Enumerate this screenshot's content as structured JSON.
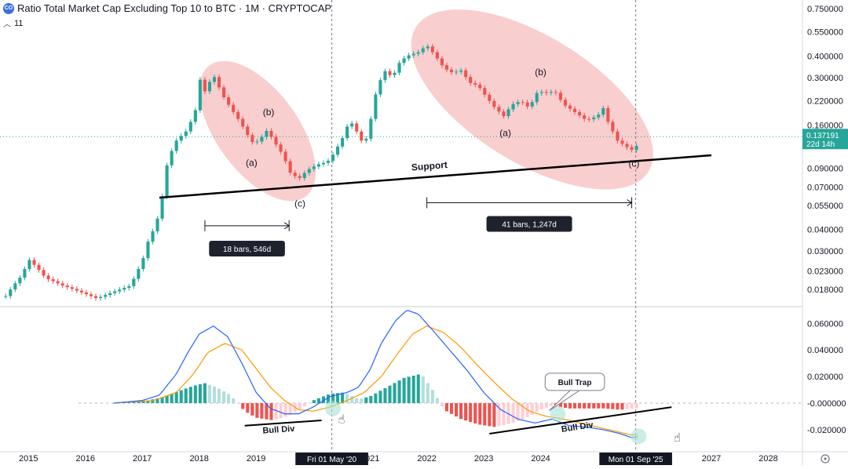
{
  "header": {
    "logo_text": "CO",
    "title": "Ratio Total Market Cap Excluding Top 10 to BTC · 1M · CRYPTOCAP",
    "indicator_toggle_icon": "chevron-up-icon",
    "indicator_count": "11"
  },
  "colors": {
    "bull": "#26a69a",
    "bear": "#ef5350",
    "macd": "#2962ff",
    "signal": "#ff9800",
    "hist_pos_strong": "#26a69a",
    "hist_pos_weak": "#b2dfdb",
    "hist_neg_strong": "#ef5350",
    "hist_neg_weak": "#ffcdd2",
    "zone": "#f4a6a6",
    "price_tag": "#26a69a"
  },
  "chart_data": {
    "type": "candlestick",
    "title": "Ratio Total Market Cap Excluding Top 10 to BTC",
    "interval": "1M",
    "scale": "log",
    "price_axis": {
      "ylim": [
        0.0145,
        0.84
      ],
      "ticks": [
        0.75,
        0.55,
        0.4,
        0.3,
        0.22,
        0.16,
        0.09,
        0.07,
        0.055,
        0.04,
        0.03,
        0.023,
        0.018
      ],
      "tick_labels": [
        "0.750000",
        "0.550000",
        "0.400000",
        "0.300000",
        "0.220000",
        "0.160000",
        "0.090000",
        "0.070000",
        "0.055000",
        "0.040000",
        "0.030000",
        "0.023000",
        "0.018000"
      ],
      "last_price_label": "0.137191",
      "countdown_label": "22d 14h"
    },
    "macd_axis": {
      "ylim": [
        -0.036,
        0.072
      ],
      "ticks": [
        0.06,
        0.04,
        0.02,
        0,
        -0.02
      ],
      "tick_labels": [
        "0.060000",
        "0.040000",
        "0.020000",
        "-0.000000",
        "-0.020000"
      ]
    },
    "time_axis": {
      "start_year": 2014.5,
      "end_year": 2028.6,
      "ticks": [
        2015,
        2016,
        2017,
        2018,
        2019,
        2021,
        2022,
        2023,
        2024,
        2027,
        2028
      ],
      "tick_labels": [
        "2015",
        "2016",
        "2017",
        "2018",
        "2019",
        "2021",
        "2022",
        "2023",
        "2024",
        "2027",
        "2028"
      ],
      "crosshair_left": {
        "year": 2020.33,
        "label": "Fri 01 May '20"
      },
      "crosshair_right": {
        "year": 2025.67,
        "label": "Mon 01 Sep '25"
      }
    },
    "price_keypoints": [
      [
        2014.6,
        0.0165
      ],
      [
        2014.9,
        0.022
      ],
      [
        2015.0,
        0.027
      ],
      [
        2015.3,
        0.021
      ],
      [
        2015.6,
        0.019
      ],
      [
        2015.9,
        0.0175
      ],
      [
        2016.2,
        0.016
      ],
      [
        2016.5,
        0.0175
      ],
      [
        2016.8,
        0.019
      ],
      [
        2017.0,
        0.026
      ],
      [
        2017.1,
        0.034
      ],
      [
        2017.25,
        0.043
      ],
      [
        2017.35,
        0.062
      ],
      [
        2017.45,
        0.1
      ],
      [
        2017.6,
        0.13
      ],
      [
        2017.8,
        0.15
      ],
      [
        2017.95,
        0.2
      ],
      [
        2018.0,
        0.3
      ],
      [
        2018.1,
        0.25
      ],
      [
        2018.25,
        0.31
      ],
      [
        2018.4,
        0.24
      ],
      [
        2018.55,
        0.2
      ],
      [
        2018.7,
        0.17
      ],
      [
        2018.85,
        0.14
      ],
      [
        2018.95,
        0.125
      ],
      [
        2019.05,
        0.13
      ],
      [
        2019.2,
        0.15
      ],
      [
        2019.3,
        0.13
      ],
      [
        2019.45,
        0.11
      ],
      [
        2019.6,
        0.085
      ],
      [
        2019.75,
        0.078
      ],
      [
        2019.9,
        0.088
      ],
      [
        2020.1,
        0.095
      ],
      [
        2020.25,
        0.098
      ],
      [
        2020.33,
        0.105
      ],
      [
        2020.5,
        0.13
      ],
      [
        2020.65,
        0.17
      ],
      [
        2020.8,
        0.14
      ],
      [
        2020.9,
        0.12
      ],
      [
        2021.0,
        0.16
      ],
      [
        2021.1,
        0.24
      ],
      [
        2021.25,
        0.33
      ],
      [
        2021.4,
        0.3
      ],
      [
        2021.5,
        0.36
      ],
      [
        2021.65,
        0.4
      ],
      [
        2021.85,
        0.42
      ],
      [
        2022.0,
        0.46
      ],
      [
        2022.15,
        0.4
      ],
      [
        2022.3,
        0.34
      ],
      [
        2022.45,
        0.32
      ],
      [
        2022.6,
        0.33
      ],
      [
        2022.75,
        0.28
      ],
      [
        2022.9,
        0.27
      ],
      [
        2023.05,
        0.23
      ],
      [
        2023.2,
        0.2
      ],
      [
        2023.35,
        0.18
      ],
      [
        2023.5,
        0.21
      ],
      [
        2023.65,
        0.22
      ],
      [
        2023.8,
        0.2
      ],
      [
        2023.95,
        0.25
      ],
      [
        2024.1,
        0.245
      ],
      [
        2024.25,
        0.25
      ],
      [
        2024.4,
        0.21
      ],
      [
        2024.6,
        0.19
      ],
      [
        2024.8,
        0.17
      ],
      [
        2025.0,
        0.18
      ],
      [
        2025.1,
        0.2
      ],
      [
        2025.2,
        0.16
      ],
      [
        2025.35,
        0.13
      ],
      [
        2025.5,
        0.12
      ],
      [
        2025.6,
        0.115
      ],
      [
        2025.67,
        0.118
      ],
      [
        2025.75,
        0.137
      ]
    ],
    "macd_keypoints": [
      [
        2015.0,
        0.0
      ],
      [
        2016.5,
        0.0
      ],
      [
        2017.0,
        0.002
      ],
      [
        2017.3,
        0.006
      ],
      [
        2017.6,
        0.022
      ],
      [
        2017.8,
        0.038
      ],
      [
        2018.0,
        0.052
      ],
      [
        2018.25,
        0.058
      ],
      [
        2018.5,
        0.05
      ],
      [
        2018.75,
        0.03
      ],
      [
        2019.0,
        0.008
      ],
      [
        2019.25,
        -0.004
      ],
      [
        2019.5,
        -0.008
      ],
      [
        2019.75,
        -0.008
      ],
      [
        2020.0,
        -0.003
      ],
      [
        2020.3,
        0.005
      ],
      [
        2020.6,
        0.008
      ],
      [
        2020.8,
        0.012
      ],
      [
        2021.0,
        0.025
      ],
      [
        2021.2,
        0.045
      ],
      [
        2021.45,
        0.062
      ],
      [
        2021.65,
        0.07
      ],
      [
        2021.85,
        0.067
      ],
      [
        2022.1,
        0.055
      ],
      [
        2022.4,
        0.04
      ],
      [
        2022.7,
        0.025
      ],
      [
        2023.0,
        0.008
      ],
      [
        2023.3,
        -0.005
      ],
      [
        2023.6,
        -0.012
      ],
      [
        2023.9,
        -0.015
      ],
      [
        2024.2,
        -0.012
      ],
      [
        2024.5,
        -0.017
      ],
      [
        2024.8,
        -0.018
      ],
      [
        2025.1,
        -0.02
      ],
      [
        2025.4,
        -0.023
      ],
      [
        2025.6,
        -0.026
      ],
      [
        2025.75,
        -0.025
      ]
    ],
    "signal_keypoints": [
      [
        2015.0,
        0.0
      ],
      [
        2016.5,
        0.0
      ],
      [
        2017.2,
        0.002
      ],
      [
        2017.6,
        0.008
      ],
      [
        2017.9,
        0.022
      ],
      [
        2018.15,
        0.038
      ],
      [
        2018.45,
        0.045
      ],
      [
        2018.75,
        0.04
      ],
      [
        2019.0,
        0.026
      ],
      [
        2019.25,
        0.012
      ],
      [
        2019.5,
        0.002
      ],
      [
        2019.75,
        -0.005
      ],
      [
        2020.0,
        -0.006
      ],
      [
        2020.3,
        -0.003
      ],
      [
        2020.6,
        0.002
      ],
      [
        2020.9,
        0.008
      ],
      [
        2021.2,
        0.02
      ],
      [
        2021.5,
        0.038
      ],
      [
        2021.75,
        0.052
      ],
      [
        2022.0,
        0.058
      ],
      [
        2022.3,
        0.053
      ],
      [
        2022.6,
        0.042
      ],
      [
        2022.9,
        0.028
      ],
      [
        2023.2,
        0.015
      ],
      [
        2023.5,
        0.003
      ],
      [
        2023.8,
        -0.006
      ],
      [
        2024.1,
        -0.01
      ],
      [
        2024.4,
        -0.012
      ],
      [
        2024.7,
        -0.015
      ],
      [
        2025.0,
        -0.018
      ],
      [
        2025.3,
        -0.021
      ],
      [
        2025.6,
        -0.024
      ],
      [
        2025.75,
        -0.024
      ]
    ],
    "histogram_keypoints": [
      [
        2016.5,
        0.0
      ],
      [
        2017.1,
        0.002
      ],
      [
        2017.4,
        0.005
      ],
      [
        2017.7,
        0.01
      ],
      [
        2017.9,
        0.013
      ],
      [
        2018.1,
        0.015
      ],
      [
        2018.3,
        0.012
      ],
      [
        2018.55,
        0.006
      ],
      [
        2018.8,
        -0.006
      ],
      [
        2019.0,
        -0.011
      ],
      [
        2019.3,
        -0.013
      ],
      [
        2019.55,
        -0.01
      ],
      [
        2019.8,
        -0.004
      ],
      [
        2020.0,
        0.002
      ],
      [
        2020.3,
        0.007
      ],
      [
        2020.55,
        0.008
      ],
      [
        2020.8,
        0.003
      ],
      [
        2021.0,
        0.005
      ],
      [
        2021.3,
        0.012
      ],
      [
        2021.6,
        0.019
      ],
      [
        2021.9,
        0.022
      ],
      [
        2022.1,
        0.01
      ],
      [
        2022.3,
        -0.005
      ],
      [
        2022.6,
        -0.012
      ],
      [
        2022.9,
        -0.016
      ],
      [
        2023.2,
        -0.018
      ],
      [
        2023.5,
        -0.015
      ],
      [
        2023.8,
        -0.01
      ],
      [
        2024.0,
        -0.005
      ],
      [
        2024.2,
        -0.002
      ],
      [
        2024.5,
        -0.004
      ],
      [
        2024.8,
        -0.004
      ],
      [
        2025.1,
        -0.004
      ],
      [
        2025.4,
        -0.005
      ],
      [
        2025.67,
        -0.004
      ]
    ],
    "support_line": {
      "label": "Support",
      "start": [
        2017.3,
        0.061
      ],
      "end": [
        2027.0,
        0.107
      ]
    },
    "corrections": [
      {
        "zone": {
          "start": [
            2018.25,
            0.33
          ],
          "end": [
            2019.8,
            0.066
          ]
        },
        "wave_labels": [
          {
            "text": "(a)",
            "x": 2018.92,
            "y": 0.093
          },
          {
            "text": "(b)",
            "x": 2019.22,
            "y": 0.182
          },
          {
            "text": "(c)",
            "x": 2019.77,
            "y": 0.054
          }
        ],
        "duration": {
          "text": "18 bars, 546d",
          "x_start": 2018.1,
          "x_end": 2019.58,
          "y": 0.042,
          "label_y": 0.031
        }
      },
      {
        "zone": {
          "start": [
            2021.9,
            0.56
          ],
          "end": [
            2025.8,
            0.09
          ]
        },
        "wave_labels": [
          {
            "text": "(a)",
            "x": 2023.38,
            "y": 0.138
          },
          {
            "text": "(b)",
            "x": 2024.0,
            "y": 0.31
          },
          {
            "text": "(c)",
            "x": 2025.64,
            "y": 0.092
          }
        ],
        "duration": {
          "text": "41 bars, 1,247d",
          "x_start": 2022.0,
          "x_end": 2025.6,
          "y": 0.057,
          "label_y": 0.043
        }
      }
    ],
    "annotations": [
      {
        "text": "Bull Div",
        "type": "divergence-line",
        "start": [
          2018.8,
          -0.017
        ],
        "end": [
          2020.15,
          -0.013
        ],
        "label_at": [
          2019.4,
          -0.022
        ]
      },
      {
        "text": "Bull Div",
        "type": "divergence-line",
        "start": [
          2023.1,
          -0.023
        ],
        "end": [
          2026.3,
          -0.003
        ],
        "label_at": [
          2024.65,
          -0.02
        ]
      },
      {
        "text": "Bull Trap",
        "type": "callout",
        "target": [
          2024.15,
          -0.008
        ],
        "label_at": [
          2024.6,
          0.016
        ]
      }
    ],
    "highlight_circles": [
      {
        "x": 2020.35,
        "y": -0.004
      },
      {
        "x": 2024.3,
        "y": -0.008
      },
      {
        "x": 2025.72,
        "y": -0.025
      }
    ]
  }
}
